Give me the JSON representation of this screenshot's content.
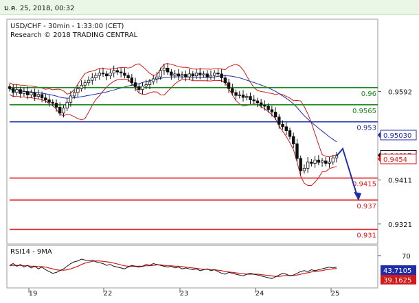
{
  "header": {
    "date_text": "ม.ค. 25, 2018, 00:32"
  },
  "chart_data": {
    "type": "candlestick",
    "title": "USD/CHF - 30min - 1:33:00 (CET)",
    "subtitle": "Research © 2018 TRADING CENTRAL",
    "x_tick_labels": [
      "19",
      "22",
      "23",
      "24",
      "25"
    ],
    "y_tick_labels": [
      "0.9592",
      "0.9411",
      "0.9321"
    ],
    "ylim": [
      0.928,
      0.974
    ],
    "y_ticks": [
      0.9592,
      0.9411,
      0.9321
    ],
    "horizontal_levels": [
      {
        "value": 0.96,
        "label": "0.96",
        "color": "#1a8a1a"
      },
      {
        "value": 0.9565,
        "label": "0.9565",
        "color": "#1a8a1a"
      },
      {
        "value": 0.953,
        "label": "0.953",
        "color": "#1f2ea6"
      },
      {
        "value": 0.9415,
        "label": "0.9415",
        "color": "#e31a1a"
      },
      {
        "value": 0.937,
        "label": "0.937",
        "color": "#e31a1a"
      },
      {
        "value": 0.931,
        "label": "0.931",
        "color": "#e31a1a"
      }
    ],
    "price_badges": [
      {
        "value": 0.9503,
        "label": "0.95030",
        "color": "#1f2ea6"
      },
      {
        "value": 0.94617,
        "label": "0.94617",
        "color": "#111111"
      },
      {
        "value": 0.9454,
        "label": "0.9454",
        "color": "#e31a1a"
      }
    ],
    "close_series": [
      0.9598,
      0.959,
      0.9596,
      0.9588,
      0.9592,
      0.9585,
      0.959,
      0.9582,
      0.9586,
      0.9579,
      0.9575,
      0.957,
      0.9568,
      0.956,
      0.9548,
      0.9558,
      0.957,
      0.9583,
      0.959,
      0.9598,
      0.9605,
      0.961,
      0.9615,
      0.962,
      0.9625,
      0.963,
      0.9628,
      0.9624,
      0.963,
      0.9635,
      0.9632,
      0.963,
      0.9625,
      0.962,
      0.961,
      0.9602,
      0.9596,
      0.9603,
      0.9606,
      0.9612,
      0.9618,
      0.9622,
      0.9635,
      0.964,
      0.9632,
      0.9625,
      0.9628,
      0.9624,
      0.9627,
      0.9622,
      0.9628,
      0.9624,
      0.963,
      0.9626,
      0.9628,
      0.9622,
      0.9625,
      0.963,
      0.9628,
      0.962,
      0.961,
      0.9598,
      0.959,
      0.9584,
      0.9585,
      0.958,
      0.9582,
      0.9575,
      0.9573,
      0.9569,
      0.9564,
      0.9562,
      0.9555,
      0.955,
      0.954,
      0.9525,
      0.952,
      0.9512,
      0.95,
      0.9485,
      0.9455,
      0.943,
      0.9435,
      0.9448,
      0.9445,
      0.9452,
      0.9447,
      0.945,
      0.9445,
      0.9448,
      0.9456,
      0.946
    ],
    "forecast_arrow": {
      "from": 0.946,
      "peak": 0.9475,
      "to": 0.937
    },
    "rsi": {
      "label": "RSI14 - 9MA",
      "badge_values": [
        "43.7105",
        "39.1625"
      ],
      "y_tick_label": "70",
      "rsi_series": [
        48,
        52,
        46,
        50,
        44,
        48,
        42,
        46,
        40,
        44,
        38,
        34,
        30,
        32,
        36,
        40,
        46,
        52,
        56,
        58,
        62,
        60,
        58,
        60,
        56,
        54,
        52,
        48,
        50,
        46,
        44,
        42,
        40,
        44,
        48,
        46,
        44,
        46,
        50,
        48,
        52,
        50,
        48,
        46,
        44,
        46,
        42,
        44,
        40,
        42,
        40,
        38,
        40,
        36,
        38,
        40,
        36,
        38,
        34,
        30,
        28,
        32,
        30,
        28,
        26,
        24,
        28,
        30,
        28,
        26,
        24,
        22,
        20,
        18,
        22,
        26,
        30,
        28,
        24,
        26,
        30,
        34,
        36,
        34,
        38,
        36,
        38,
        40,
        42,
        44,
        42,
        44
      ],
      "ma_series": [
        47,
        48,
        48,
        48,
        47,
        47,
        46,
        46,
        45,
        45,
        44,
        42,
        40,
        38,
        37,
        37,
        38,
        40,
        43,
        46,
        50,
        53,
        55,
        57,
        58,
        58,
        57,
        56,
        55,
        53,
        51,
        49,
        47,
        46,
        46,
        46,
        46,
        46,
        47,
        47,
        48,
        49,
        49,
        48,
        47,
        47,
        46,
        46,
        45,
        44,
        43,
        42,
        41,
        40,
        39,
        39,
        38,
        38,
        37,
        36,
        34,
        33,
        32,
        31,
        30,
        29,
        28,
        28,
        28,
        28,
        27,
        26,
        25,
        24,
        23,
        23,
        24,
        25,
        25,
        25,
        26,
        28,
        30,
        31,
        33,
        34,
        35,
        36,
        38,
        39,
        40,
        41
      ]
    }
  }
}
